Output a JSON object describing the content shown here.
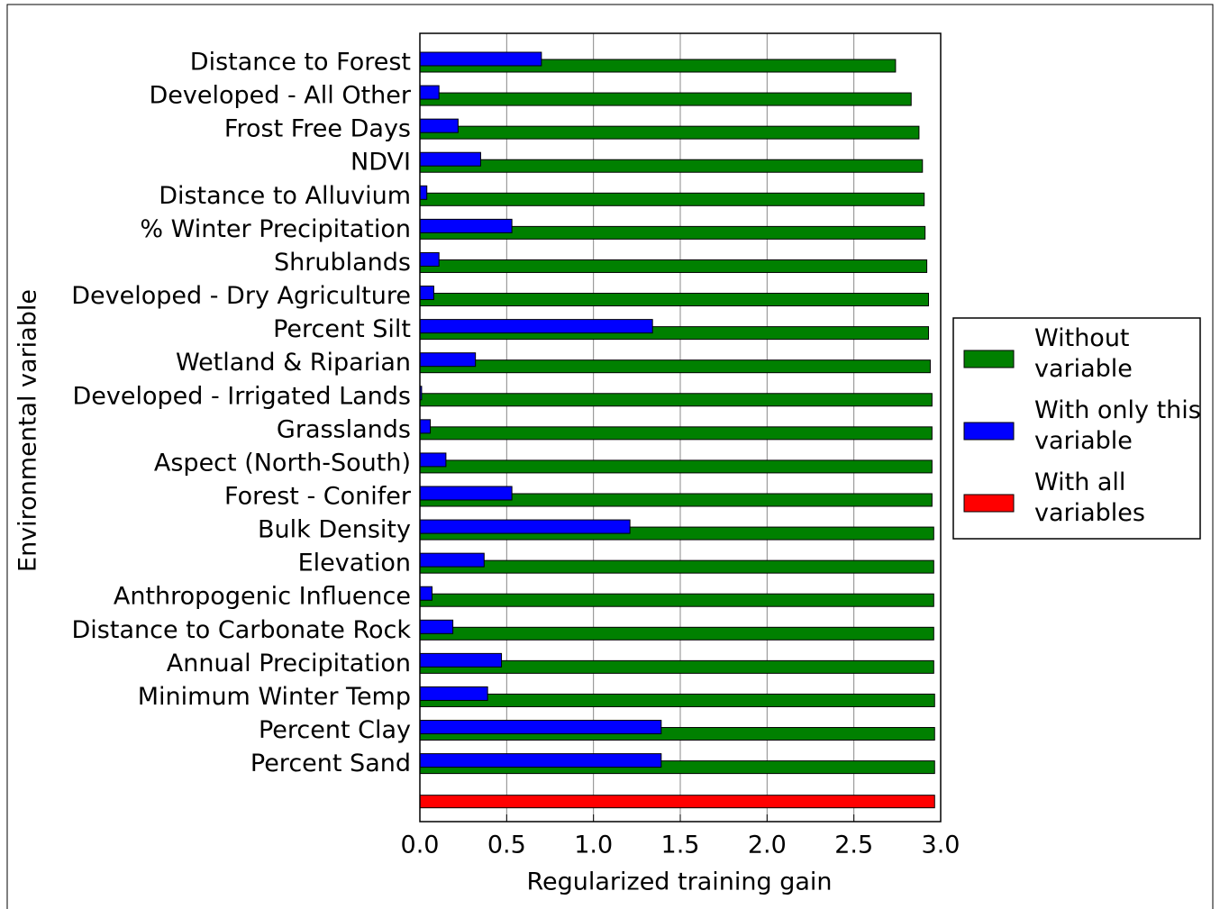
{
  "chart_data": {
    "type": "barh",
    "xlabel": "Regularized training gain",
    "ylabel": "Environmental variable",
    "categories": [
      "Distance to Forest",
      "Developed - All Other",
      "Frost Free Days",
      "NDVI",
      "Distance to Alluvium",
      "% Winter Precipitation",
      "Shrublands",
      "Developed - Dry Agriculture",
      "Percent Silt",
      "Wetland & Riparian",
      "Developed - Irrigated Lands",
      "Grasslands",
      "Aspect (North-South)",
      "Forest - Conifer",
      "Bulk Density",
      "Elevation",
      "Anthropogenic Influence",
      "Distance to Carbonate Rock",
      "Annual Precipitation",
      "Minimum Winter Temp",
      "Percent Clay",
      "Percent Sand",
      null
    ],
    "series": [
      {
        "name": "Without variable",
        "color": "#008000",
        "values": [
          2.74,
          2.83,
          2.875,
          2.895,
          2.905,
          2.91,
          2.92,
          2.93,
          2.93,
          2.94,
          2.95,
          2.95,
          2.95,
          2.95,
          2.96,
          2.96,
          2.96,
          2.96,
          2.96,
          2.965,
          2.965,
          2.965,
          null
        ]
      },
      {
        "name": "With only this variable",
        "color": "#0000ff",
        "values": [
          0.7,
          0.11,
          0.22,
          0.35,
          0.04,
          0.53,
          0.11,
          0.08,
          1.34,
          0.32,
          0.01,
          0.06,
          0.15,
          0.53,
          1.21,
          0.37,
          0.07,
          0.19,
          0.47,
          0.39,
          1.39,
          1.39,
          null
        ]
      },
      {
        "name": "With all variables",
        "color": "#ff0000",
        "values": [
          null,
          null,
          null,
          null,
          null,
          null,
          null,
          null,
          null,
          null,
          null,
          null,
          null,
          null,
          null,
          null,
          null,
          null,
          null,
          null,
          null,
          null,
          2.965
        ]
      }
    ],
    "xlim": [
      0,
      3
    ],
    "xticks": [
      {
        "value": 0,
        "label": "0.0"
      },
      0.5,
      {
        "value": 1,
        "label": "1.0"
      },
      1.5,
      {
        "value": 2,
        "label": "2.0"
      },
      2.5,
      {
        "value": 3,
        "label": "3.0"
      }
    ],
    "grid": true,
    "legend": "right"
  }
}
